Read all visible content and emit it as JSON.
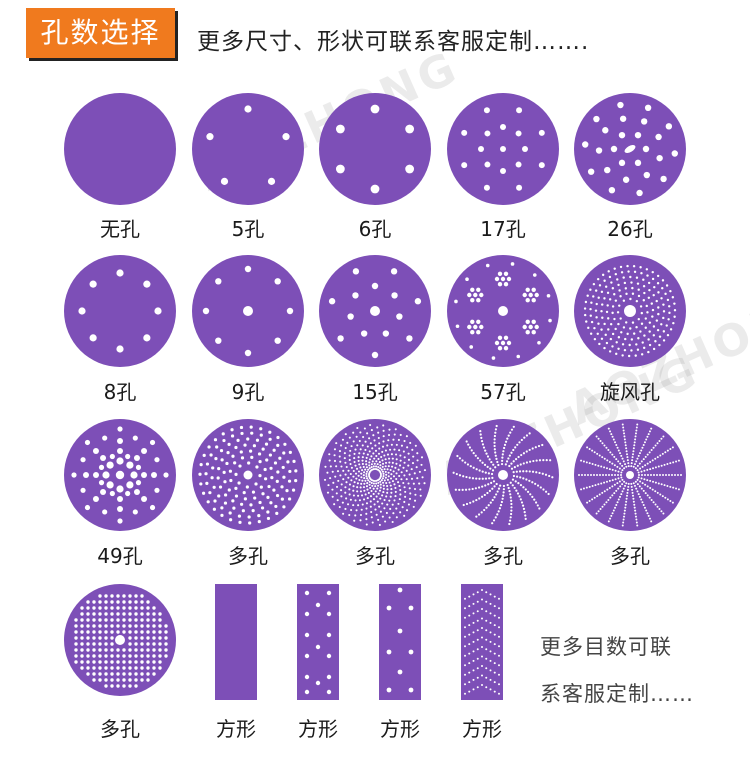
{
  "header": {
    "tag": "孔数选择",
    "subtitle": "更多尺寸、形状可联系客服定制……."
  },
  "colors": {
    "disc": "#7d4fb7",
    "hole": "#ffffff",
    "tag_bg": "#f07a1e"
  },
  "watermark": "AOZHONG",
  "items": [
    {
      "label": "无孔",
      "pattern": "none"
    },
    {
      "label": "5孔",
      "pattern": "5"
    },
    {
      "label": "6孔",
      "pattern": "6"
    },
    {
      "label": "17孔",
      "pattern": "17"
    },
    {
      "label": "26孔",
      "pattern": "26"
    },
    {
      "label": "8孔",
      "pattern": "8"
    },
    {
      "label": "9孔",
      "pattern": "9"
    },
    {
      "label": "15孔",
      "pattern": "15"
    },
    {
      "label": "57孔",
      "pattern": "57"
    },
    {
      "label": "旋风孔",
      "pattern": "cyclone"
    },
    {
      "label": "49孔",
      "pattern": "49"
    },
    {
      "label": "多孔",
      "pattern": "multi-dots"
    },
    {
      "label": "多孔",
      "pattern": "spiral"
    },
    {
      "label": "多孔",
      "pattern": "multi-rays"
    },
    {
      "label": "多孔",
      "pattern": "multi-rays2"
    },
    {
      "label": "多孔",
      "pattern": "grid"
    }
  ],
  "sheets": [
    {
      "label": "方形",
      "pattern": "plain"
    },
    {
      "label": "方形",
      "pattern": "holes-2col"
    },
    {
      "label": "方形",
      "pattern": "holes-zig"
    },
    {
      "label": "方形",
      "pattern": "chevron"
    }
  ],
  "side_note": {
    "line1": "更多目数可联",
    "line2": "系客服定制……"
  }
}
